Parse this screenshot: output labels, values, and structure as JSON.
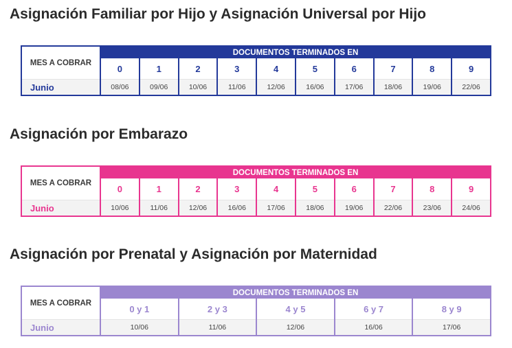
{
  "theme": {
    "blue": "#23399a",
    "pink": "#e8358f",
    "purple": "#9b86cf"
  },
  "sections": [
    {
      "title": "Asignación Familiar por Hijo y Asignación Universal por Hijo",
      "mes_label": "MES A COBRAR",
      "mes_value": "Junio",
      "header": "DOCUMENTOS TERMINADOS EN",
      "columns": [
        {
          "digit": "0",
          "date": "08/06"
        },
        {
          "digit": "1",
          "date": "09/06"
        },
        {
          "digit": "2",
          "date": "10/06"
        },
        {
          "digit": "3",
          "date": "11/06"
        },
        {
          "digit": "4",
          "date": "12/06"
        },
        {
          "digit": "5",
          "date": "16/06"
        },
        {
          "digit": "6",
          "date": "17/06"
        },
        {
          "digit": "7",
          "date": "18/06"
        },
        {
          "digit": "8",
          "date": "19/06"
        },
        {
          "digit": "9",
          "date": "22/06"
        }
      ]
    },
    {
      "title": "Asignación por Embarazo",
      "mes_label": "MES A COBRAR",
      "mes_value": "Junio",
      "header": "DOCUMENTOS TERMINADOS EN",
      "columns": [
        {
          "digit": "0",
          "date": "10/06"
        },
        {
          "digit": "1",
          "date": "11/06"
        },
        {
          "digit": "2",
          "date": "12/06"
        },
        {
          "digit": "3",
          "date": "16/06"
        },
        {
          "digit": "4",
          "date": "17/06"
        },
        {
          "digit": "5",
          "date": "18/06"
        },
        {
          "digit": "6",
          "date": "19/06"
        },
        {
          "digit": "7",
          "date": "22/06"
        },
        {
          "digit": "8",
          "date": "23/06"
        },
        {
          "digit": "9",
          "date": "24/06"
        }
      ]
    },
    {
      "title": "Asignación por Prenatal y Asignación por Maternidad",
      "mes_label": "MES A COBRAR",
      "mes_value": "Junio",
      "header": "DOCUMENTOS TERMINADOS EN",
      "columns": [
        {
          "digit": "0 y 1",
          "date": "10/06"
        },
        {
          "digit": "2 y 3",
          "date": "11/06"
        },
        {
          "digit": "4 y 5",
          "date": "12/06"
        },
        {
          "digit": "6 y 7",
          "date": "16/06"
        },
        {
          "digit": "8 y 9",
          "date": "17/06"
        }
      ]
    }
  ]
}
